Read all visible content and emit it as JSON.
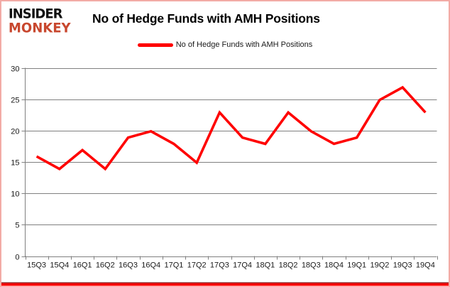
{
  "brand": {
    "line1": "INSIDER",
    "line2": "MONKEY",
    "line1_color": "#111111",
    "line2_color": "#c8472e"
  },
  "header": {
    "title": "No of Hedge Funds with AMH Positions"
  },
  "legend": {
    "label": "No of Hedge Funds with AMH Positions",
    "swatch_color": "#ff0000"
  },
  "chart_data": {
    "type": "line",
    "title": "No of Hedge Funds with AMH Positions",
    "categories": [
      "15Q3",
      "15Q4",
      "16Q1",
      "16Q2",
      "16Q3",
      "16Q4",
      "17Q1",
      "17Q2",
      "17Q3",
      "17Q4",
      "18Q1",
      "18Q2",
      "18Q3",
      "18Q4",
      "19Q1",
      "19Q2",
      "19Q3",
      "19Q4"
    ],
    "series": [
      {
        "name": "No of Hedge Funds with AMH Positions",
        "color": "#ff0000",
        "values": [
          16,
          14,
          17,
          14,
          19,
          20,
          18,
          15,
          23,
          19,
          18,
          23,
          20,
          18,
          19,
          25,
          27,
          23
        ]
      }
    ],
    "xlabel": "",
    "ylabel": "",
    "ylim": [
      0,
      30
    ],
    "yticks": [
      0,
      5,
      10,
      15,
      20,
      25,
      30
    ],
    "grid": true,
    "gridline_color": "#808080",
    "axis_color": "#808080",
    "tick_label_color": "#1a1a1a",
    "legend_position": "top-center",
    "line_width": 3.6
  },
  "frame": {
    "border_color": "#f2aba6",
    "bottom_bar_color": "#ff0000"
  }
}
